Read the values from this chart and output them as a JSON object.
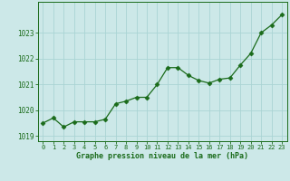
{
  "x": [
    0,
    1,
    2,
    3,
    4,
    5,
    6,
    7,
    8,
    9,
    10,
    11,
    12,
    13,
    14,
    15,
    16,
    17,
    18,
    19,
    20,
    21,
    22,
    23
  ],
  "y": [
    1019.5,
    1019.7,
    1019.35,
    1019.55,
    1019.55,
    1019.55,
    1019.65,
    1020.25,
    1020.35,
    1020.5,
    1020.5,
    1021.0,
    1021.65,
    1021.65,
    1021.35,
    1021.15,
    1021.05,
    1021.2,
    1021.25,
    1021.75,
    1022.2,
    1023.0,
    1023.3,
    1023.7
  ],
  "ylim": [
    1018.8,
    1024.2
  ],
  "yticks": [
    1019,
    1020,
    1021,
    1022,
    1023
  ],
  "xlim": [
    -0.5,
    23.5
  ],
  "xticks": [
    0,
    1,
    2,
    3,
    4,
    5,
    6,
    7,
    8,
    9,
    10,
    11,
    12,
    13,
    14,
    15,
    16,
    17,
    18,
    19,
    20,
    21,
    22,
    23
  ],
  "xlabel": "Graphe pression niveau de la mer (hPa)",
  "line_color": "#1a6b1a",
  "marker_color": "#1a6b1a",
  "bg_color": "#cce8e8",
  "grid_color": "#aad4d4",
  "xlabel_color": "#1a6b1a",
  "tick_color": "#1a6b1a",
  "axis_color": "#1a6b1a"
}
